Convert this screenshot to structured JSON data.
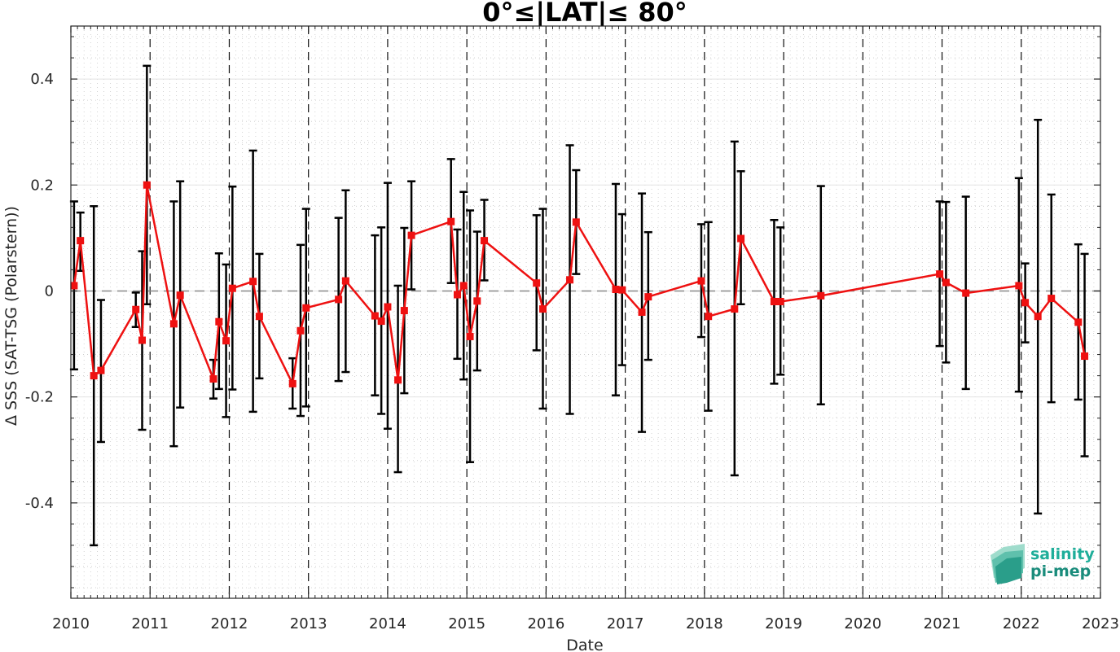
{
  "chart_data": {
    "type": "line",
    "title": "0°≤|LAT|≤ 80°",
    "xlabel": "Date",
    "ylabel": "Δ SSS (SAT-TSG (Polarstern))",
    "xlim": [
      2010.0,
      2023.0
    ],
    "ylim": [
      -0.58,
      0.5
    ],
    "x_ticks": [
      "2010",
      "2011",
      "2012",
      "2013",
      "2014",
      "2015",
      "2016",
      "2017",
      "2018",
      "2019",
      "2020",
      "2021",
      "2022",
      "2023"
    ],
    "y_ticks": [
      {
        "value": 0.4,
        "label": "0.4"
      },
      {
        "value": 0.2,
        "label": "0.2"
      },
      {
        "value": 0,
        "label": "0"
      },
      {
        "value": -0.2,
        "label": "-0.2"
      },
      {
        "value": -0.4,
        "label": "-0.4"
      }
    ],
    "grid": true,
    "series": [
      {
        "color": "#ee1111",
        "errorbar_color": "#000000",
        "x": [
          2010.04,
          2010.12,
          2010.29,
          2010.38,
          2010.82,
          2010.9,
          2010.96,
          2011.3,
          2011.38,
          2011.8,
          2011.87,
          2011.96,
          2012.04,
          2012.3,
          2012.38,
          2012.8,
          2012.9,
          2012.97,
          2013.38,
          2013.47,
          2013.84,
          2013.92,
          2014.0,
          2014.13,
          2014.21,
          2014.3,
          2014.8,
          2014.88,
          2014.96,
          2015.04,
          2015.13,
          2015.22,
          2015.88,
          2015.96,
          2016.3,
          2016.38,
          2016.88,
          2016.96,
          2017.21,
          2017.29,
          2017.96,
          2018.05,
          2018.38,
          2018.46,
          2018.88,
          2018.96,
          2019.47,
          2020.97,
          2021.05,
          2021.3,
          2021.97,
          2022.05,
          2022.21,
          2022.38,
          2022.72,
          2022.8
        ],
        "values": [
          0.01,
          0.095,
          -0.16,
          -0.15,
          -0.035,
          -0.093,
          0.2,
          -0.062,
          -0.008,
          -0.166,
          -0.058,
          -0.094,
          0.005,
          0.018,
          -0.048,
          -0.175,
          -0.075,
          -0.032,
          -0.016,
          0.019,
          -0.047,
          -0.057,
          -0.03,
          -0.168,
          -0.037,
          0.105,
          0.131,
          -0.007,
          0.01,
          -0.086,
          -0.019,
          0.095,
          0.015,
          -0.034,
          0.021,
          0.13,
          0.003,
          0.002,
          -0.04,
          -0.011,
          0.019,
          -0.048,
          -0.034,
          0.099,
          -0.02,
          -0.02,
          -0.009,
          0.032,
          0.016,
          -0.004,
          0.01,
          -0.022,
          -0.048,
          -0.014,
          -0.059,
          -0.123
        ],
        "err_low": [
          -0.148,
          0.038,
          -0.48,
          -0.285,
          -0.068,
          -0.262,
          -0.025,
          -0.293,
          -0.22,
          -0.203,
          -0.185,
          -0.238,
          -0.186,
          -0.228,
          -0.165,
          -0.222,
          -0.236,
          -0.218,
          -0.17,
          -0.153,
          -0.197,
          -0.232,
          -0.26,
          -0.342,
          -0.193,
          0.003,
          0.015,
          -0.128,
          -0.167,
          -0.323,
          -0.15,
          0.02,
          -0.112,
          -0.222,
          -0.232,
          0.032,
          -0.197,
          -0.14,
          -0.266,
          -0.13,
          -0.087,
          -0.226,
          -0.348,
          -0.025,
          -0.175,
          -0.158,
          -0.214,
          -0.104,
          -0.135,
          -0.185,
          -0.19,
          -0.097,
          -0.42,
          -0.21,
          -0.205,
          -0.312
        ],
        "err_high": [
          0.169,
          0.148,
          0.16,
          -0.017,
          -0.003,
          0.075,
          0.425,
          0.169,
          0.207,
          -0.13,
          0.071,
          0.05,
          0.197,
          0.265,
          0.07,
          -0.127,
          0.087,
          0.155,
          0.138,
          0.19,
          0.105,
          0.12,
          0.204,
          0.01,
          0.119,
          0.207,
          0.249,
          0.116,
          0.187,
          0.152,
          0.112,
          0.172,
          0.143,
          0.155,
          0.275,
          0.228,
          0.202,
          0.145,
          0.184,
          0.111,
          0.126,
          0.13,
          0.282,
          0.226,
          0.134,
          0.12,
          0.198,
          0.169,
          0.168,
          0.178,
          0.213,
          0.052,
          0.323,
          0.182,
          0.088,
          0.07
        ]
      }
    ],
    "reference_line": {
      "value": 0,
      "color": "#888888",
      "style": "dashed"
    }
  },
  "logo": {
    "line1": "salinity",
    "line2": "pi-mep",
    "color": "#1a9c8c"
  }
}
